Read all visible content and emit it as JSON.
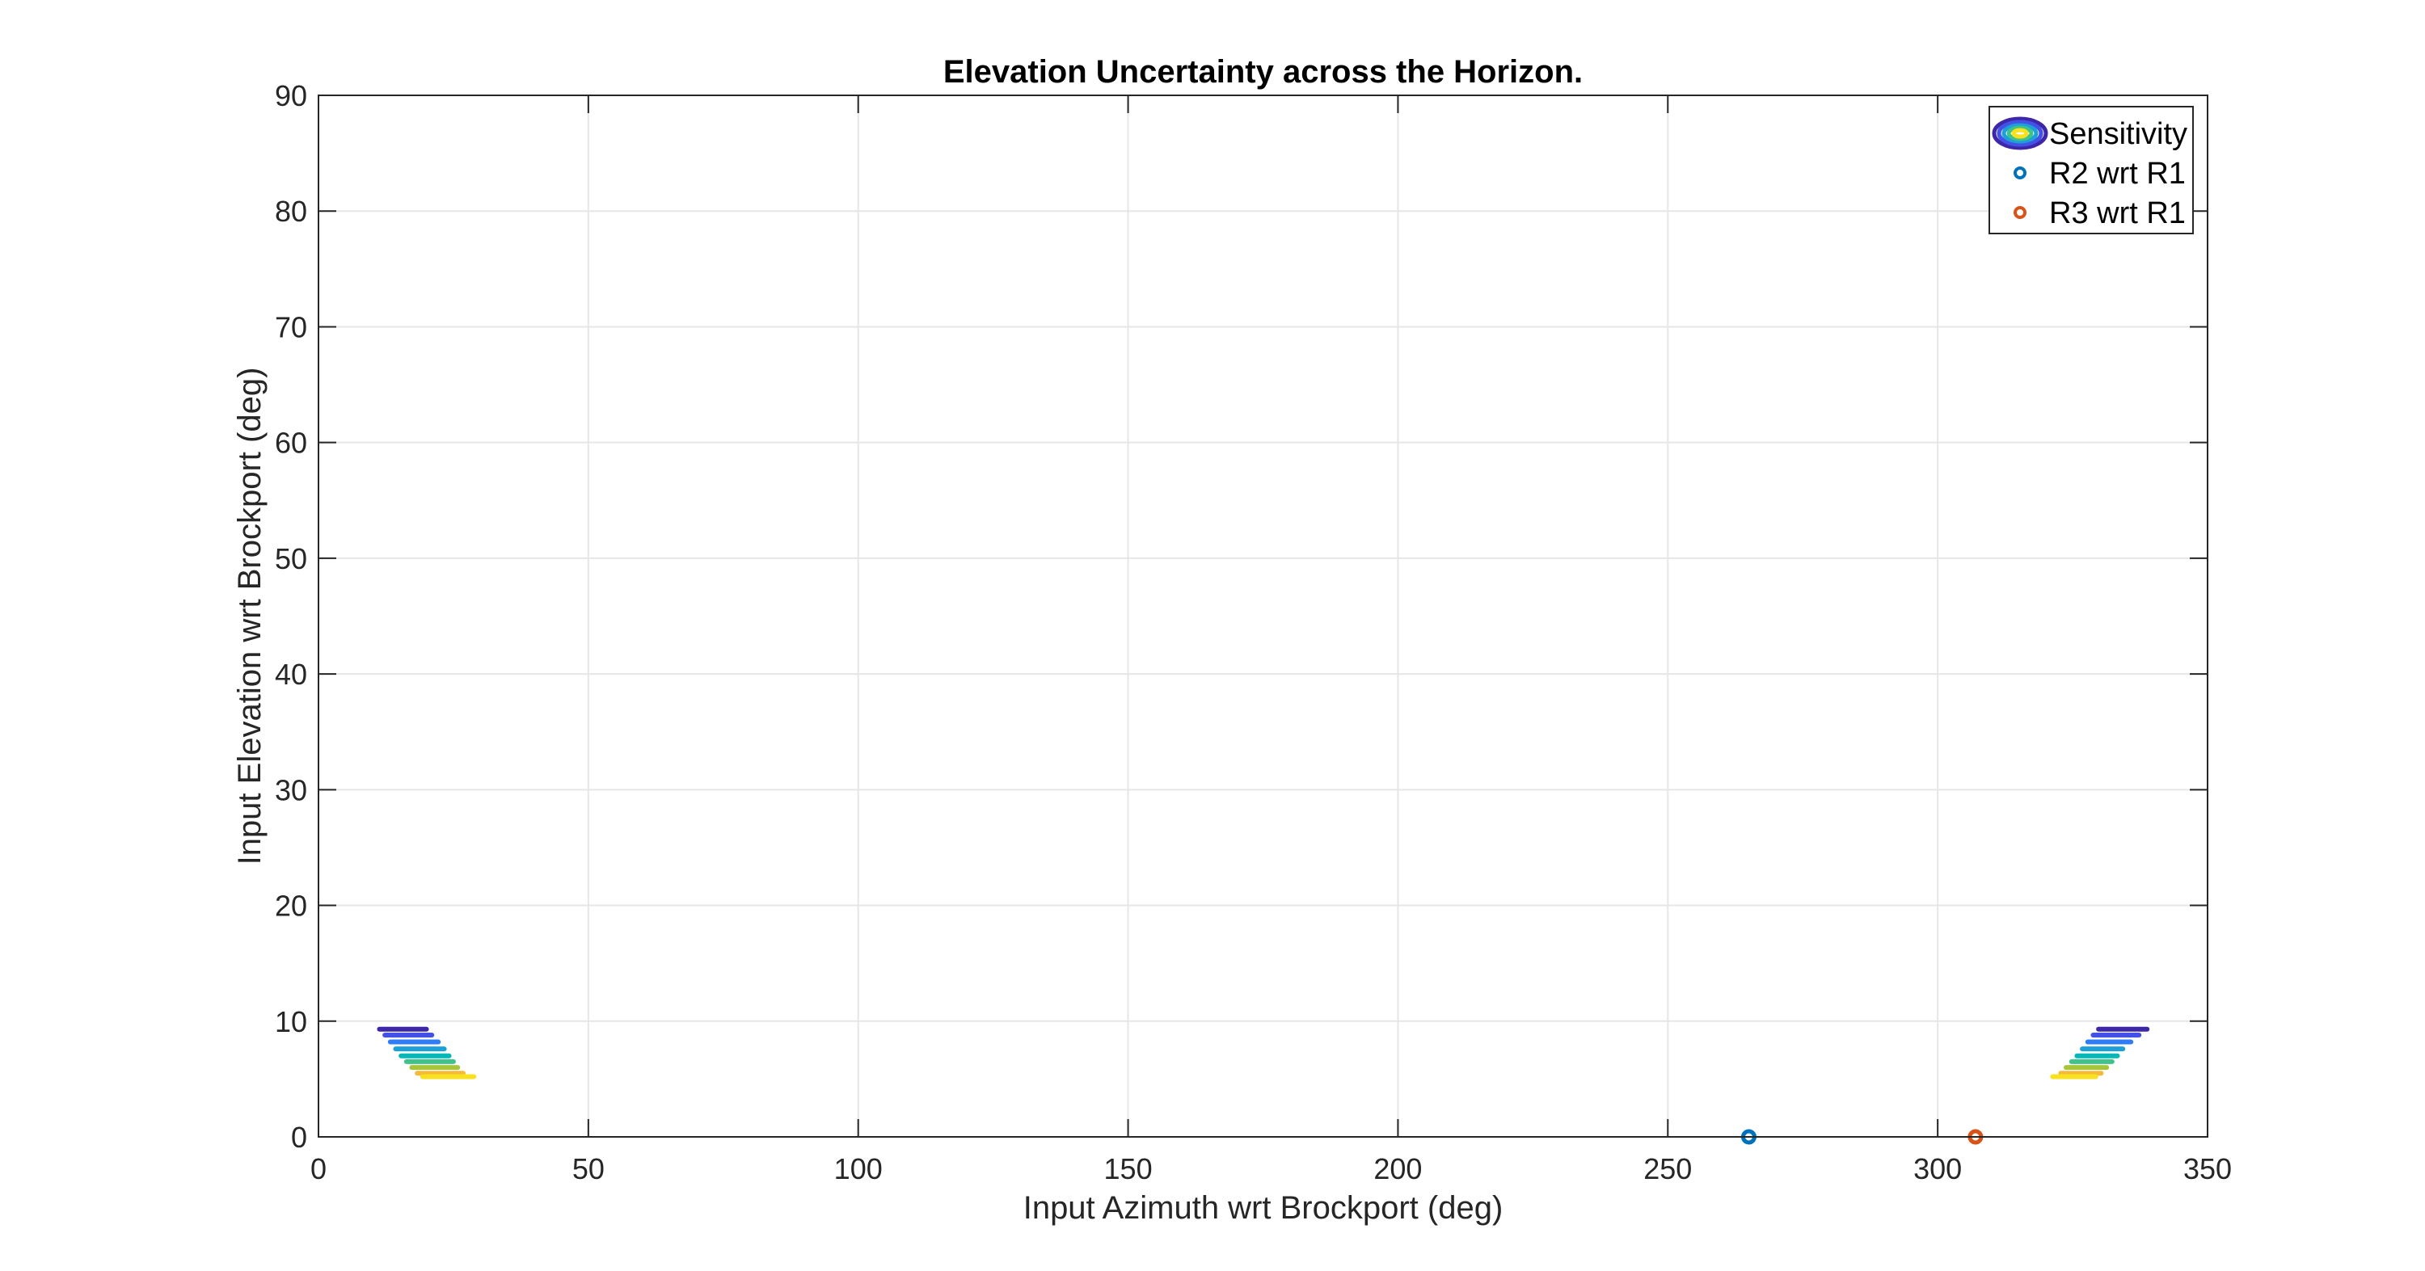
{
  "chart_data": {
    "type": "scatter",
    "title": "Elevation Uncertainty across the Horizon.",
    "xlabel": "Input Azimuth wrt Brockport (deg)",
    "ylabel": "Input Elevation wrt Brockport (deg)",
    "xlim": [
      0,
      350
    ],
    "ylim": [
      0,
      90
    ],
    "xticks": [
      "0",
      "50",
      "100",
      "150",
      "200",
      "250",
      "300",
      "350"
    ],
    "yticks": [
      "0",
      "10",
      "20",
      "30",
      "40",
      "50",
      "60",
      "70",
      "80",
      "90"
    ],
    "grid": true,
    "legend_position": "top-right",
    "legend": [
      "Sensitivity",
      "R2 wrt R1",
      "R3 wrt R1"
    ],
    "series": [
      {
        "name": "Sensitivity",
        "kind": "contour",
        "regions": [
          {
            "level_lines": [
              {
                "y": 9.3,
                "x1": 11.3,
                "x2": 20.0,
                "color": "#3e26a8"
              },
              {
                "y": 8.8,
                "x1": 12.3,
                "x2": 21.0,
                "color": "#4352e6"
              },
              {
                "y": 8.2,
                "x1": 13.3,
                "x2": 22.2,
                "color": "#2f7cf8"
              },
              {
                "y": 7.6,
                "x1": 14.3,
                "x2": 23.3,
                "color": "#1d9fd8"
              },
              {
                "y": 7.0,
                "x1": 15.3,
                "x2": 24.2,
                "color": "#07b7b8"
              },
              {
                "y": 6.5,
                "x1": 16.3,
                "x2": 25.0,
                "color": "#3fc38a"
              },
              {
                "y": 6.0,
                "x1": 17.3,
                "x2": 25.8,
                "color": "#a7c43a"
              },
              {
                "y": 5.5,
                "x1": 18.3,
                "x2": 26.8,
                "color": "#f4ba3a"
              },
              {
                "y": 5.2,
                "x1": 19.3,
                "x2": 28.8,
                "color": "#f9e21d"
              }
            ]
          },
          {
            "level_lines": [
              {
                "y": 9.3,
                "x1": 329.8,
                "x2": 338.8,
                "color": "#3e26a8"
              },
              {
                "y": 8.8,
                "x1": 328.8,
                "x2": 337.3,
                "color": "#4352e6"
              },
              {
                "y": 8.2,
                "x1": 327.8,
                "x2": 335.8,
                "color": "#2f7cf8"
              },
              {
                "y": 7.6,
                "x1": 326.8,
                "x2": 334.3,
                "color": "#1d9fd8"
              },
              {
                "y": 7.0,
                "x1": 325.8,
                "x2": 333.3,
                "color": "#07b7b8"
              },
              {
                "y": 6.5,
                "x1": 324.8,
                "x2": 332.3,
                "color": "#3fc38a"
              },
              {
                "y": 6.0,
                "x1": 323.8,
                "x2": 331.3,
                "color": "#a7c43a"
              },
              {
                "y": 5.5,
                "x1": 322.8,
                "x2": 330.3,
                "color": "#f4ba3a"
              },
              {
                "y": 5.2,
                "x1": 321.3,
                "x2": 329.3,
                "color": "#f9e21d"
              }
            ]
          }
        ]
      },
      {
        "name": "R2 wrt R1",
        "marker": "circle",
        "color": "#0072bd",
        "x": [
          265
        ],
        "y": [
          0
        ]
      },
      {
        "name": "R3 wrt R1",
        "marker": "circle",
        "color": "#d95319",
        "x": [
          307
        ],
        "y": [
          0
        ]
      }
    ]
  }
}
